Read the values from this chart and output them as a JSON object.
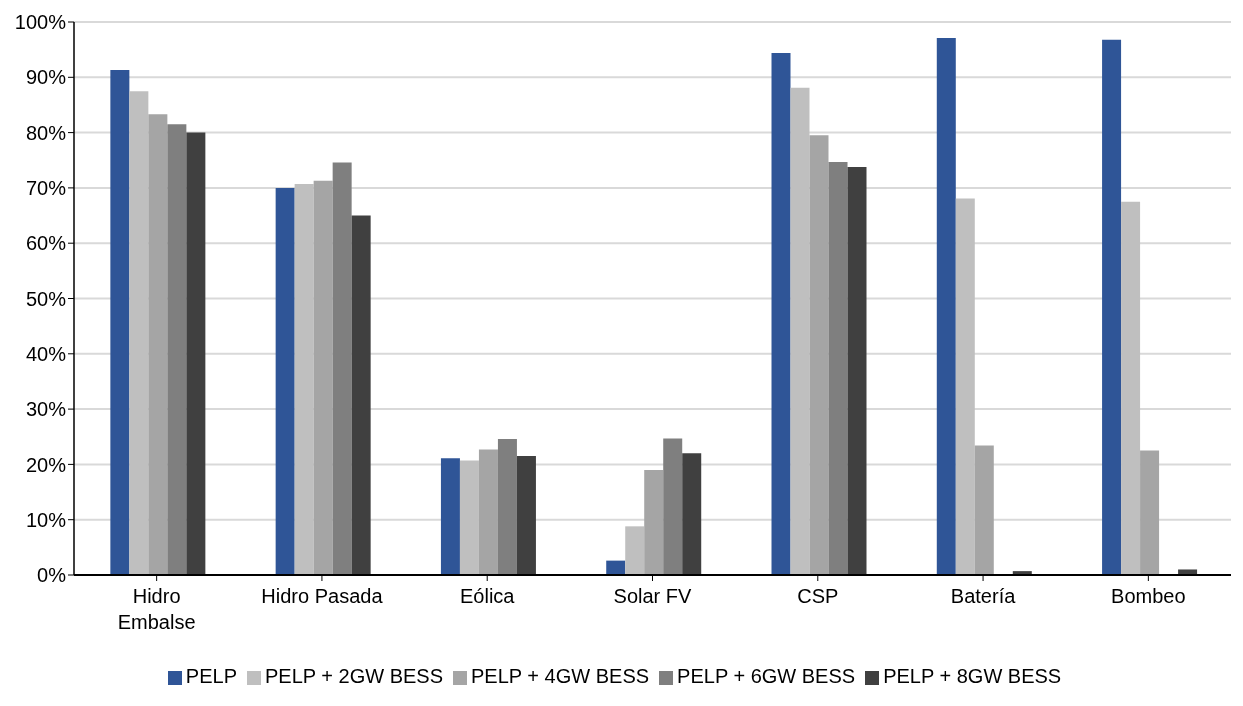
{
  "chart_data": {
    "type": "bar",
    "categories": [
      "Hidro Embalse",
      "Hidro Pasada",
      "Eólica",
      "Solar FV",
      "CSP",
      "Batería",
      "Bombeo"
    ],
    "series": [
      {
        "name": "PELP",
        "color": "#2f5597",
        "values": [
          91.3,
          70.0,
          21.1,
          2.6,
          94.4,
          97.1,
          96.8
        ]
      },
      {
        "name": "PELP + 2GW BESS",
        "color": "#bfbfbf",
        "values": [
          87.5,
          70.7,
          20.7,
          8.8,
          88.1,
          68.1,
          67.5
        ]
      },
      {
        "name": "PELP + 4GW BESS",
        "color": "#a5a5a5",
        "values": [
          83.3,
          71.3,
          22.7,
          19.0,
          79.5,
          23.4,
          22.5
        ]
      },
      {
        "name": "PELP + 6GW BESS",
        "color": "#7f7f7f",
        "values": [
          81.5,
          74.6,
          24.6,
          24.7,
          74.7,
          null,
          null
        ]
      },
      {
        "name": "PELP + 8GW BESS",
        "color": "#404040",
        "values": [
          80.0,
          65.0,
          21.5,
          22.0,
          73.8,
          0.7,
          1.0
        ]
      }
    ],
    "ylim": [
      0,
      100
    ],
    "yticks": [
      {
        "value": 0,
        "label": "0%"
      },
      {
        "value": 10,
        "label": "10%"
      },
      {
        "value": 20,
        "label": "20%"
      },
      {
        "value": 30,
        "label": "30%"
      },
      {
        "value": 40,
        "label": "40%"
      },
      {
        "value": 50,
        "label": "50%"
      },
      {
        "value": 60,
        "label": "60%"
      },
      {
        "value": 70,
        "label": "70%"
      },
      {
        "value": 80,
        "label": "80%"
      },
      {
        "value": 90,
        "label": "90%"
      },
      {
        "value": 100,
        "label": "100%"
      }
    ],
    "grid": "y",
    "legend": "bottom"
  }
}
